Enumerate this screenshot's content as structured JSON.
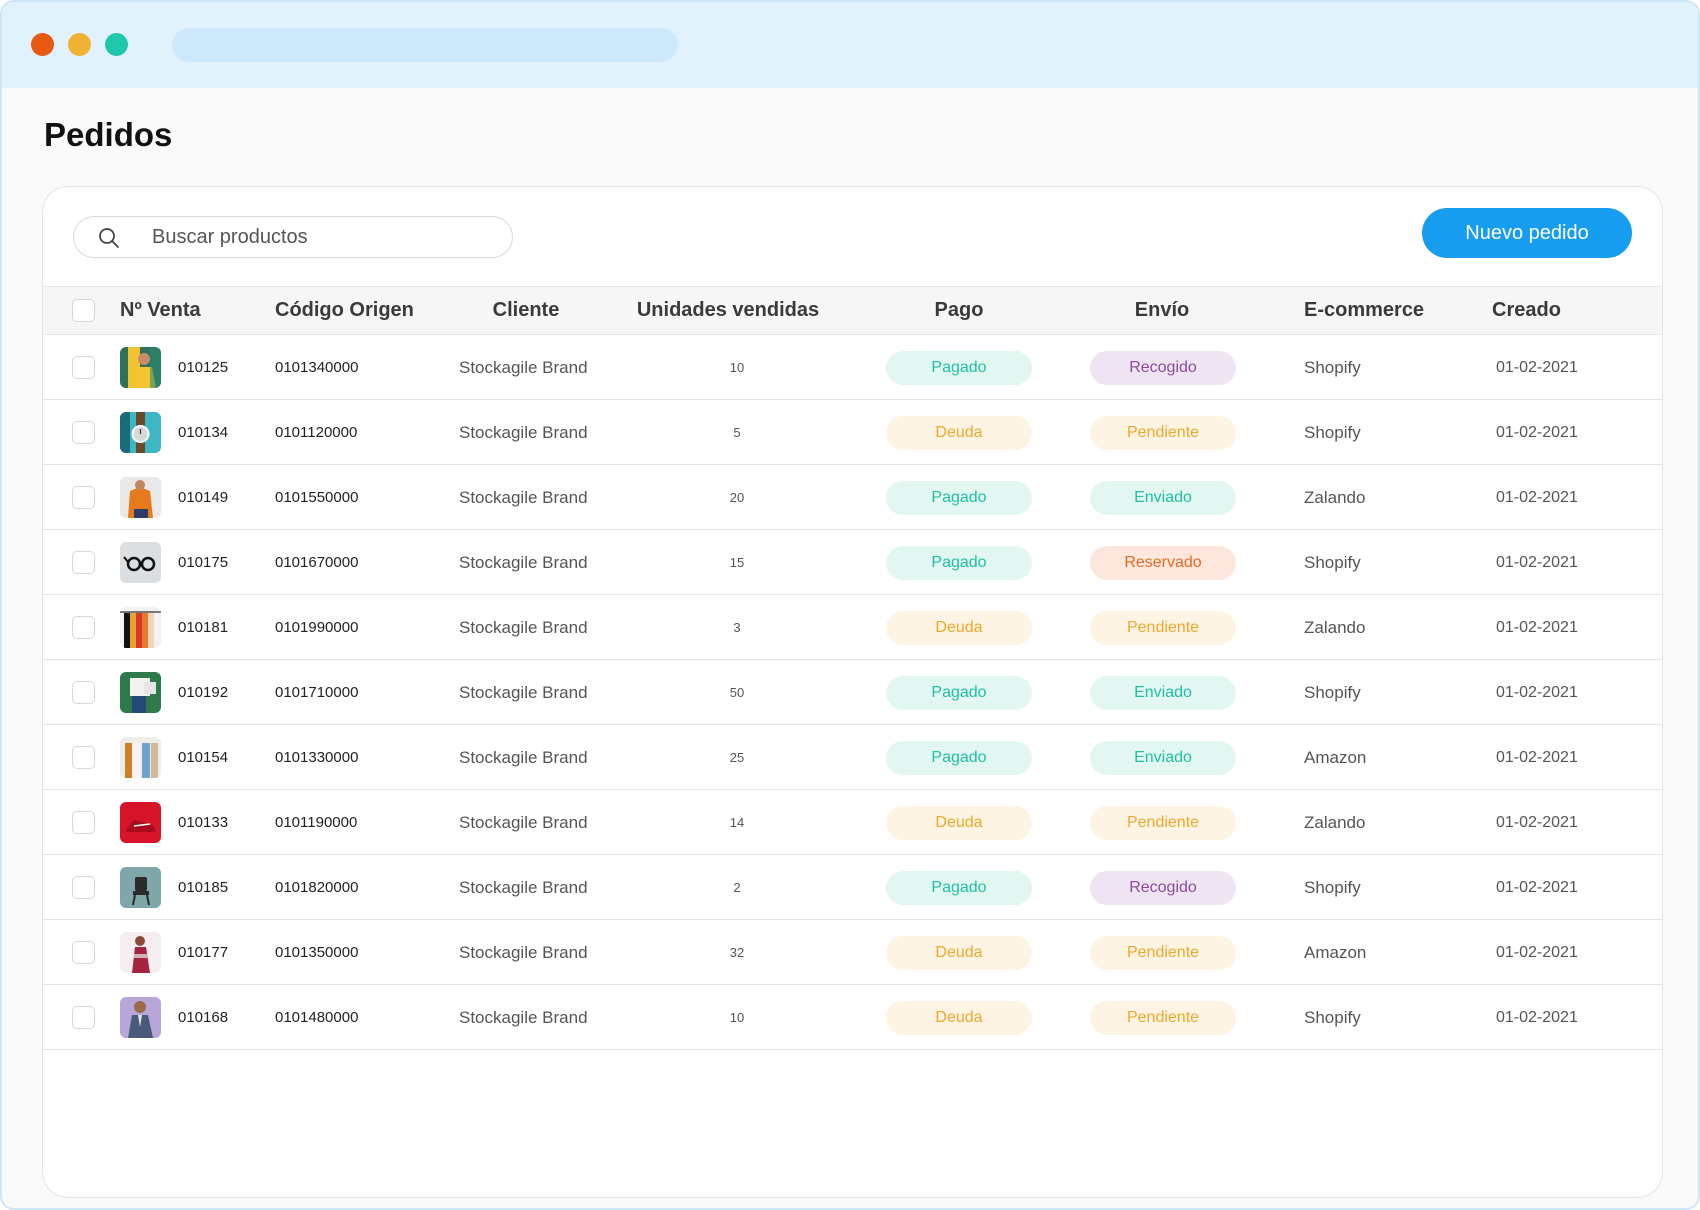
{
  "page": {
    "title": "Pedidos"
  },
  "toolbar": {
    "search_placeholder": "Buscar productos",
    "new_button": "Nuevo pedido"
  },
  "colors": {
    "accent": "#169df0",
    "status_green": "#1fbfa3",
    "status_yellow": "#eda72b",
    "status_purple": "#8e4aa2",
    "status_orange": "#e26a22"
  },
  "table": {
    "headers": {
      "venta": "Nº Venta",
      "codigo": "Código Origen",
      "cliente": "Cliente",
      "unidades": "Unidades vendidas",
      "pago": "Pago",
      "envio": "Envío",
      "ecommerce": "E-commerce",
      "creado": "Creado"
    },
    "rows": [
      {
        "venta": "010125",
        "codigo": "0101340000",
        "cliente": "Stockagile Brand",
        "unidades": "10",
        "pago": "Pagado",
        "envio": "Recogido",
        "ecommerce": "Shopify",
        "creado": "01-02-2021",
        "thumb": "woman-yellow-jacket"
      },
      {
        "venta": "010134",
        "codigo": "0101120000",
        "cliente": "Stockagile Brand",
        "unidades": "5",
        "pago": "Deuda",
        "envio": "Pendiente",
        "ecommerce": "Shopify",
        "creado": "01-02-2021",
        "thumb": "wristwatch"
      },
      {
        "venta": "010149",
        "codigo": "0101550000",
        "cliente": "Stockagile Brand",
        "unidades": "20",
        "pago": "Pagado",
        "envio": "Enviado",
        "ecommerce": "Zalando",
        "creado": "01-02-2021",
        "thumb": "orange-sweater"
      },
      {
        "venta": "010175",
        "codigo": "0101670000",
        "cliente": "Stockagile Brand",
        "unidades": "15",
        "pago": "Pagado",
        "envio": "Reservado",
        "ecommerce": "Shopify",
        "creado": "01-02-2021",
        "thumb": "glasses"
      },
      {
        "venta": "010181",
        "codigo": "0101990000",
        "cliente": "Stockagile Brand",
        "unidades": "3",
        "pago": "Deuda",
        "envio": "Pendiente",
        "ecommerce": "Zalando",
        "creado": "01-02-2021",
        "thumb": "clothes-rack"
      },
      {
        "venta": "010192",
        "codigo": "0101710000",
        "cliente": "Stockagile Brand",
        "unidades": "50",
        "pago": "Pagado",
        "envio": "Enviado",
        "ecommerce": "Shopify",
        "creado": "01-02-2021",
        "thumb": "shirt-jeans"
      },
      {
        "venta": "010154",
        "codigo": "0101330000",
        "cliente": "Stockagile Brand",
        "unidades": "25",
        "pago": "Pagado",
        "envio": "Enviado",
        "ecommerce": "Amazon",
        "creado": "01-02-2021",
        "thumb": "hanging-clothes"
      },
      {
        "venta": "010133",
        "codigo": "0101190000",
        "cliente": "Stockagile Brand",
        "unidades": "14",
        "pago": "Deuda",
        "envio": "Pendiente",
        "ecommerce": "Zalando",
        "creado": "01-02-2021",
        "thumb": "red-sneaker"
      },
      {
        "venta": "010185",
        "codigo": "0101820000",
        "cliente": "Stockagile Brand",
        "unidades": "2",
        "pago": "Pagado",
        "envio": "Recogido",
        "ecommerce": "Shopify",
        "creado": "01-02-2021",
        "thumb": "chair"
      },
      {
        "venta": "010177",
        "codigo": "0101350000",
        "cliente": "Stockagile Brand",
        "unidades": "32",
        "pago": "Deuda",
        "envio": "Pendiente",
        "ecommerce": "Amazon",
        "creado": "01-02-2021",
        "thumb": "red-dress"
      },
      {
        "venta": "010168",
        "codigo": "0101480000",
        "cliente": "Stockagile Brand",
        "unidades": "10",
        "pago": "Deuda",
        "envio": "Pendiente",
        "ecommerce": "Shopify",
        "creado": "01-02-2021",
        "thumb": "man-suit"
      }
    ]
  }
}
